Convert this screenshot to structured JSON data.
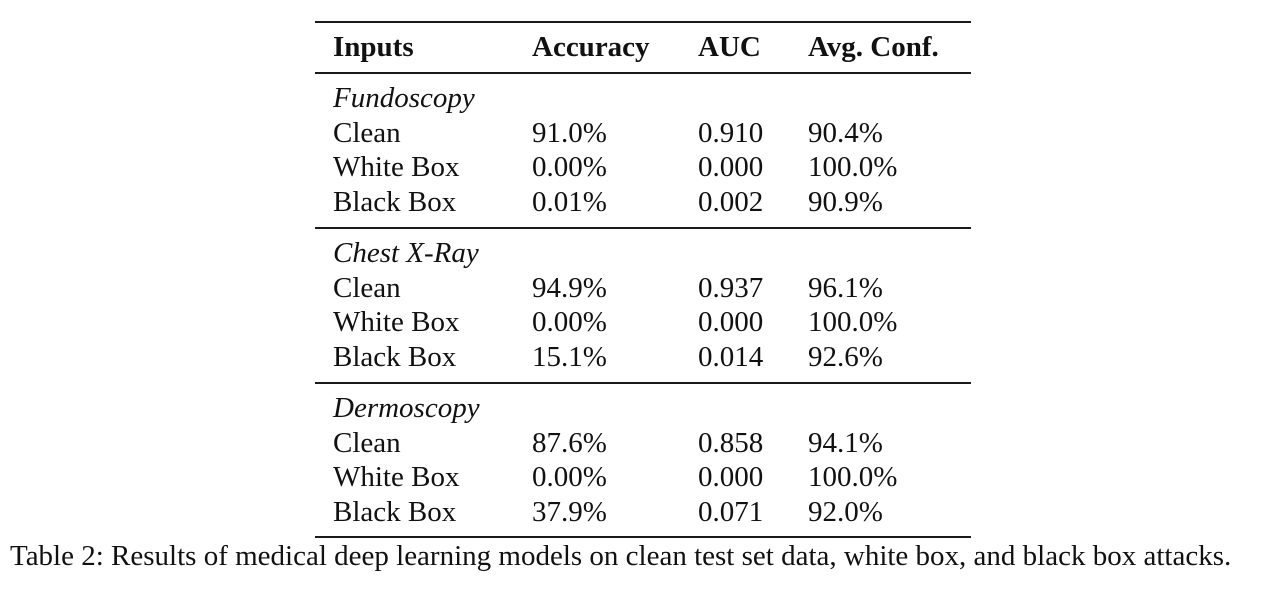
{
  "table": {
    "headers": [
      "Inputs",
      "Accuracy",
      "AUC",
      "Avg. Conf."
    ],
    "groups": [
      {
        "name": "Fundoscopy",
        "rows": [
          [
            "Clean",
            "91.0%",
            "0.910",
            "90.4%"
          ],
          [
            "White Box",
            "0.00%",
            "0.000",
            "100.0%"
          ],
          [
            "Black Box",
            "0.01%",
            "0.002",
            "90.9%"
          ]
        ]
      },
      {
        "name": "Chest X-Ray",
        "rows": [
          [
            "Clean",
            "94.9%",
            "0.937",
            "96.1%"
          ],
          [
            "White Box",
            "0.00%",
            "0.000",
            "100.0%"
          ],
          [
            "Black Box",
            "15.1%",
            "0.014",
            "92.6%"
          ]
        ]
      },
      {
        "name": "Dermoscopy",
        "rows": [
          [
            "Clean",
            "87.6%",
            "0.858",
            "94.1%"
          ],
          [
            "White Box",
            "0.00%",
            "0.000",
            "100.0%"
          ],
          [
            "Black Box",
            "37.9%",
            "0.071",
            "92.0%"
          ]
        ]
      }
    ]
  },
  "caption": "Table 2: Results of medical deep learning models on clean test set data, white box, and black box attacks."
}
